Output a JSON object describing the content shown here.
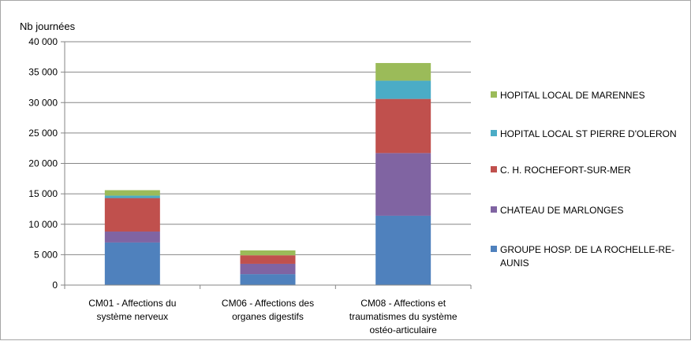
{
  "chart_data": {
    "type": "bar",
    "stacked": true,
    "ylabel": "Nb journées",
    "ylim": [
      0,
      40000
    ],
    "ytick_values": [
      0,
      5000,
      10000,
      15000,
      20000,
      25000,
      30000,
      35000,
      40000
    ],
    "ytick_labels": [
      "0",
      "5 000",
      "10 000",
      "15 000",
      "20 000",
      "25 000",
      "30 000",
      "35 000",
      "40 000"
    ],
    "grid": true,
    "legend_position": "right",
    "categories": [
      [
        "CM01 - Affections du",
        "système nerveux"
      ],
      [
        "CM06 - Affections des",
        "organes digestifs"
      ],
      [
        "CM08 - Affections et",
        "traumatismes du système",
        "ostéo-articulaire"
      ]
    ],
    "series": [
      {
        "name": [
          "GROUPE HOSP. DE LA ROCHELLE-RE-",
          "AUNIS"
        ],
        "color": "#4f81bd",
        "values": [
          7000,
          1800,
          11400
        ]
      },
      {
        "name": [
          "CHATEAU DE MARLONGES"
        ],
        "color": "#8064a2",
        "values": [
          1800,
          1700,
          10300
        ]
      },
      {
        "name": [
          "C. H. ROCHEFORT-SUR-MER"
        ],
        "color": "#c0504d",
        "values": [
          5500,
          1400,
          8900
        ]
      },
      {
        "name": [
          "HOPITAL LOCAL ST PIERRE D'OLERON"
        ],
        "color": "#4bacc6",
        "values": [
          400,
          0,
          3000
        ]
      },
      {
        "name": [
          "HOPITAL LOCAL DE MARENNES"
        ],
        "color": "#9bbb59",
        "values": [
          900,
          800,
          2900
        ]
      }
    ]
  }
}
